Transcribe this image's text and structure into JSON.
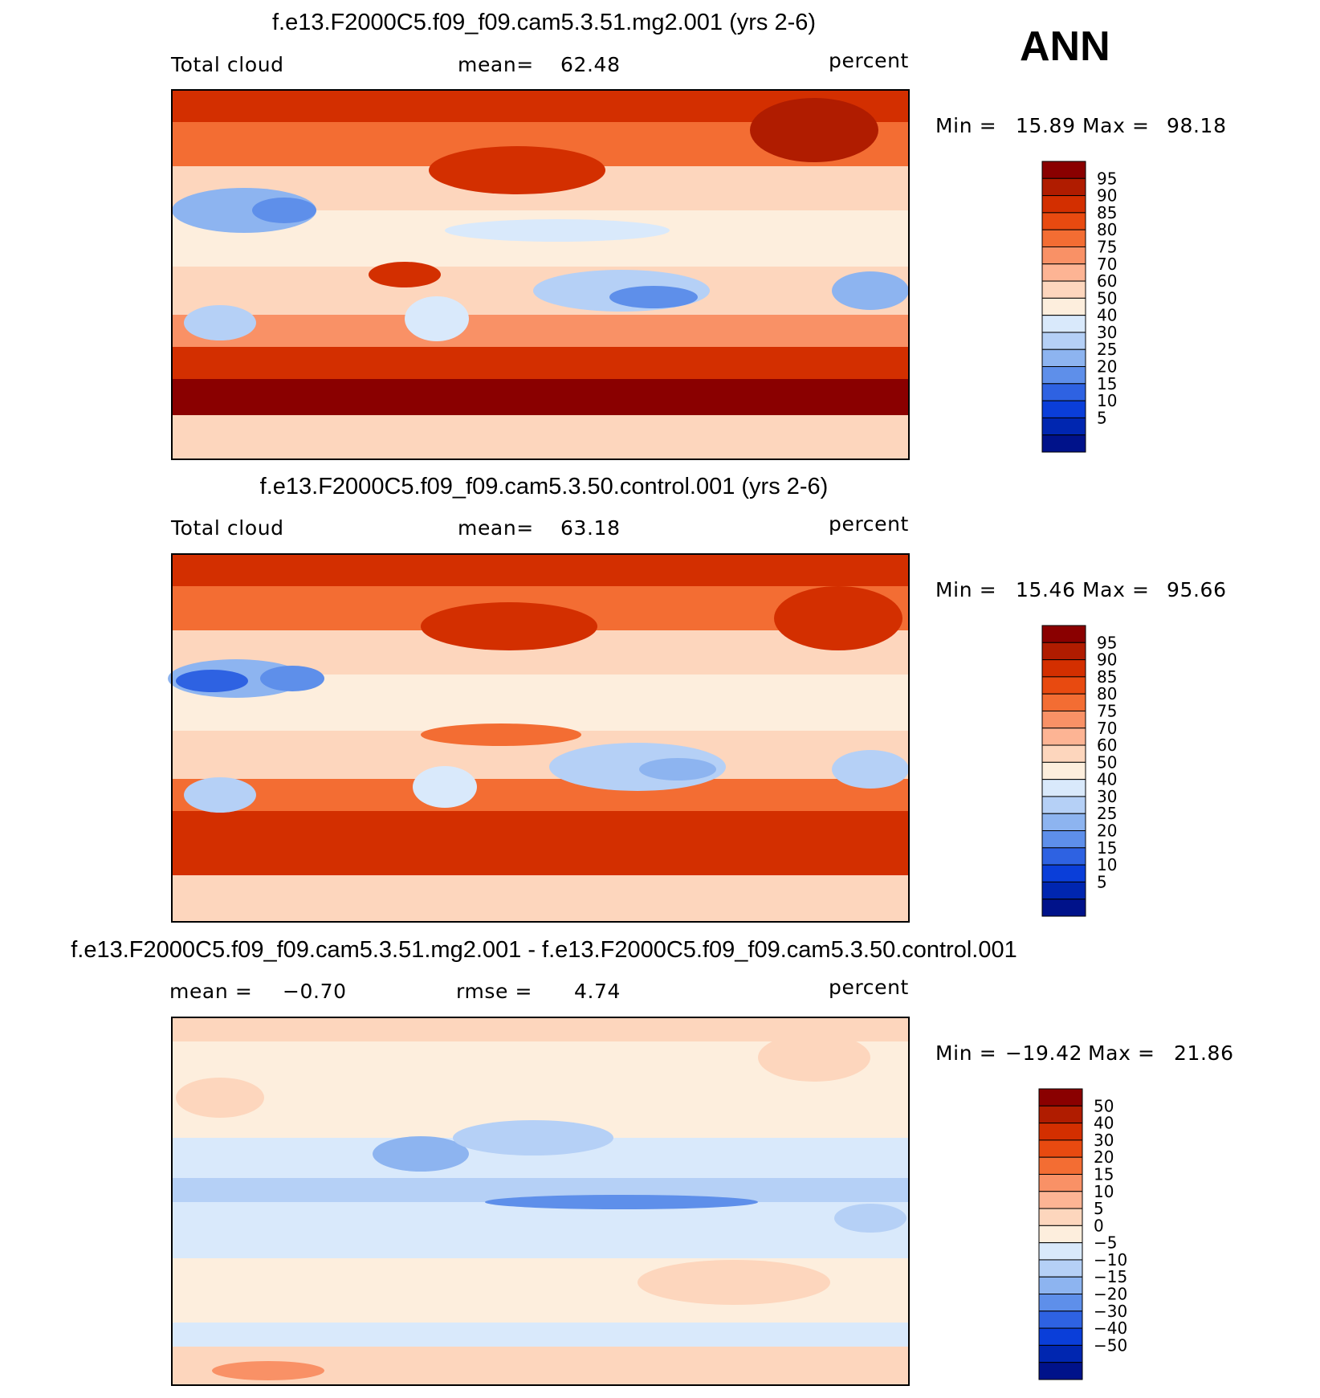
{
  "season": "ANN",
  "units_label": "percent",
  "scale_main": {
    "levels": [
      "95",
      "90",
      "85",
      "80",
      "75",
      "70",
      "60",
      "50",
      "40",
      "30",
      "25",
      "20",
      "15",
      "10",
      "5"
    ],
    "colors": [
      "#8a0000",
      "#b01c00",
      "#d32f00",
      "#e84a10",
      "#f36d33",
      "#f99166",
      "#fdb494",
      "#fdd6bd",
      "#fdeedd",
      "#d9e9fb",
      "#b5d0f6",
      "#8db4f0",
      "#5e8fea",
      "#2e62e2",
      "#0a3ed9",
      "#0026b0",
      "#00128a"
    ]
  },
  "scale_diff": {
    "levels": [
      "50",
      "40",
      "30",
      "20",
      "15",
      "10",
      "5",
      "0",
      "−5",
      "−10",
      "−15",
      "−20",
      "−30",
      "−40",
      "−50"
    ],
    "colors": [
      "#8a0000",
      "#b01c00",
      "#d32f00",
      "#e84a10",
      "#f36d33",
      "#f99166",
      "#fdb494",
      "#fdd6bd",
      "#fdeedd",
      "#d9e9fb",
      "#b5d0f6",
      "#8db4f0",
      "#5e8fea",
      "#2e62e2",
      "#0a3ed9",
      "#0026b0",
      "#00128a"
    ]
  },
  "panels": [
    {
      "title": "f.e13.F2000C5.f09_f09.cam5.3.51.mg2.001 (yrs 2-6)",
      "left_label": "Total cloud",
      "stat1_label": "mean=",
      "stat1_value": "62.48",
      "units": "percent",
      "min_label": "Min =",
      "min_value": "15.89",
      "max_label": "Max =",
      "max_value": "98.18"
    },
    {
      "title": "f.e13.F2000C5.f09_f09.cam5.3.50.control.001 (yrs 2-6)",
      "left_label": "Total cloud",
      "stat1_label": "mean=",
      "stat1_value": "63.18",
      "units": "percent",
      "min_label": "Min =",
      "min_value": "15.46",
      "max_label": "Max =",
      "max_value": "95.66"
    },
    {
      "title": "f.e13.F2000C5.f09_f09.cam5.3.51.mg2.001 - f.e13.F2000C5.f09_f09.cam5.3.50.control.001",
      "mean_label": "mean =",
      "mean_value": "−0.70",
      "rmse_label": "rmse =",
      "rmse_value": "4.74",
      "units": "percent",
      "min_label": "Min =",
      "min_value": "−19.42",
      "max_label": "Max =",
      "max_value": "21.86"
    }
  ],
  "chart_data": [
    {
      "type": "heatmap",
      "title": "f.e13.F2000C5.f09_f09.cam5.3.51.mg2.001 (yrs 2-6)",
      "variable": "Total cloud",
      "units": "percent",
      "mean": 62.48,
      "min": 15.89,
      "max": 98.18,
      "contour_levels": [
        5,
        10,
        15,
        20,
        25,
        30,
        40,
        50,
        60,
        70,
        75,
        80,
        85,
        90,
        95
      ]
    },
    {
      "type": "heatmap",
      "title": "f.e13.F2000C5.f09_f09.cam5.3.50.control.001 (yrs 2-6)",
      "variable": "Total cloud",
      "units": "percent",
      "mean": 63.18,
      "min": 15.46,
      "max": 95.66,
      "contour_levels": [
        5,
        10,
        15,
        20,
        25,
        30,
        40,
        50,
        60,
        70,
        75,
        80,
        85,
        90,
        95
      ]
    },
    {
      "type": "heatmap",
      "title": "f.e13.F2000C5.f09_f09.cam5.3.51.mg2.001 - f.e13.F2000C5.f09_f09.cam5.3.50.control.001",
      "units": "percent",
      "mean": -0.7,
      "rmse": 4.74,
      "min": -19.42,
      "max": 21.86,
      "contour_levels": [
        -50,
        -40,
        -30,
        -20,
        -15,
        -10,
        -5,
        0,
        5,
        10,
        15,
        20,
        30,
        40,
        50
      ]
    }
  ]
}
